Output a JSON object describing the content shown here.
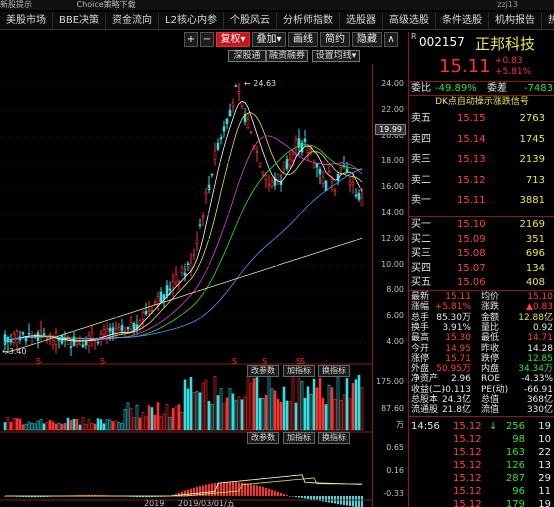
{
  "topbar": {
    "left1": "新股提示",
    "left2": "Choice策略下载",
    "user": "zzj13"
  },
  "menu": [
    "美股市场",
    "BBE决策",
    "资金流向",
    "L2核心内参",
    "个股风云",
    "分析师指数",
    "选股器",
    "高级选股",
    "条件选股",
    "机构报告",
    "热点自"
  ],
  "toolbar": {
    "plus": "+",
    "minus": "−",
    "fuquan": "复权",
    "overlay": "叠加",
    "draw": "画线",
    "simple": "简约",
    "hide": "隐藏",
    "more": "∧"
  },
  "subtabs": [
    "深股通",
    "融资融券",
    "设置均线"
  ],
  "stock": {
    "badge": "R",
    "code": "002157",
    "name": "正邦科技",
    "price": "15.11",
    "change": "+0.83",
    "change_pct": "+5.81%"
  },
  "ratio": {
    "label1": "委比",
    "value1": "-49.89%",
    "label2": "委差",
    "value2": "-7483"
  },
  "signal": "DK点自动操示涨跌信号",
  "asks": [
    {
      "label": "卖五",
      "price": "15.15",
      "vol": "2763"
    },
    {
      "label": "卖四",
      "price": "15.14",
      "vol": "1745"
    },
    {
      "label": "卖三",
      "price": "15.13",
      "vol": "2139"
    },
    {
      "label": "卖二",
      "price": "15.12",
      "vol": "713"
    },
    {
      "label": "卖一",
      "price": "15.11",
      "vol": "3881"
    }
  ],
  "bids": [
    {
      "label": "买一",
      "price": "15.10",
      "vol": "2169"
    },
    {
      "label": "买二",
      "price": "15.09",
      "vol": "351"
    },
    {
      "label": "买三",
      "price": "15.08",
      "vol": "696"
    },
    {
      "label": "买四",
      "price": "15.07",
      "vol": "134"
    },
    {
      "label": "买五",
      "price": "15.06",
      "vol": "408"
    }
  ],
  "stats": [
    {
      "l1": "最新",
      "v1": "15.11",
      "c1": "red",
      "l2": "均价",
      "v2": "15.10",
      "c2": "red"
    },
    {
      "l1": "涨幅",
      "v1": "+5.81%",
      "c1": "red",
      "l2": "涨跌",
      "v2": "▲0.83",
      "c2": "red"
    },
    {
      "l1": "总手",
      "v1": "85.30万",
      "c1": "white",
      "l2": "金额",
      "v2": "12.88亿",
      "c2": "yellow"
    },
    {
      "l1": "换手",
      "v1": "3.91%",
      "c1": "white",
      "l2": "量比",
      "v2": "0.92",
      "c2": "white"
    },
    {
      "l1": "最高",
      "v1": "15.30",
      "c1": "red",
      "l2": "最低",
      "v2": "14.71",
      "c2": "red"
    },
    {
      "l1": "今开",
      "v1": "14.95",
      "c1": "red",
      "l2": "昨收",
      "v2": "14.28",
      "c2": "white"
    },
    {
      "l1": "涨停",
      "v1": "15.71",
      "c1": "red",
      "l2": "跌停",
      "v2": "12.85",
      "c2": "green"
    },
    {
      "l1": "外盘",
      "v1": "50.95万",
      "c1": "red",
      "l2": "内盘",
      "v2": "34.34万",
      "c2": "green"
    },
    {
      "l1": "净资产",
      "v1": "2.96",
      "c1": "white",
      "l2": "ROE",
      "v2": "-4.33%",
      "c2": "white"
    },
    {
      "l1": "收益(二)",
      "v1": "-0.113",
      "c1": "white",
      "l2": "PE(动)",
      "v2": "-66.91",
      "c2": "white"
    },
    {
      "l1": "总股本",
      "v1": "24.3亿",
      "c1": "white",
      "l2": "总值",
      "v2": "368亿",
      "c2": "white"
    },
    {
      "l1": "流通股",
      "v1": "21.8亿",
      "c1": "white",
      "l2": "流值",
      "v2": "330亿",
      "c2": "white"
    }
  ],
  "ticks": [
    {
      "time": "14:56",
      "price": "15.12",
      "dir": "↓",
      "vol": "256",
      "n": "19"
    },
    {
      "time": "",
      "price": "15.12",
      "dir": "",
      "vol": "98",
      "n": "10"
    },
    {
      "time": "",
      "price": "15.12",
      "dir": "",
      "vol": "163",
      "n": "22"
    },
    {
      "time": "",
      "price": "15.12",
      "dir": "",
      "vol": "126",
      "n": "13"
    },
    {
      "time": "",
      "price": "15.12",
      "dir": "",
      "vol": "287",
      "n": "29"
    },
    {
      "time": "",
      "price": "15.12",
      "dir": "",
      "vol": "96",
      "n": "11"
    },
    {
      "time": "",
      "price": "15.12",
      "dir": "",
      "vol": "179",
      "n": "19"
    }
  ],
  "price_axis": [
    "24.00",
    "22.00",
    "20.00",
    "18.00",
    "16.00",
    "14.00",
    "12.00",
    "10.00",
    "8.00",
    "6.00",
    "4.00"
  ],
  "current_price_tag": "19.99",
  "peak_label": "24.63",
  "low_label": "3.40",
  "vol_axis": [
    "175.00",
    "87.60",
    "万"
  ],
  "macd_axis": [
    "0.65",
    "0.16",
    "-0.33"
  ],
  "panel_buttons": [
    "改参数",
    "加指标",
    "换指标"
  ],
  "x_labels": [
    "2019",
    "2019/03/01/五"
  ],
  "colors": {
    "up": "#ff3030",
    "down": "#30e0e0",
    "ma5": "#ffffff",
    "ma10": "#e8e840",
    "ma20": "#e040e0",
    "ma30": "#30e030",
    "ma60": "#40a0ff",
    "ma120": "#e8e8a0"
  }
}
